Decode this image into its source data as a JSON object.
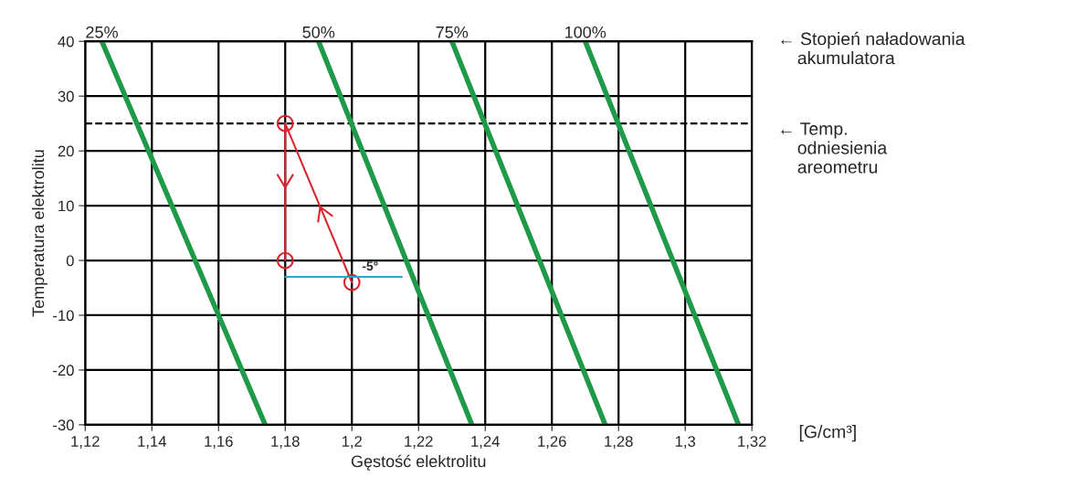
{
  "chart_data": {
    "type": "line",
    "xlabel": "Gęstość elektrolitu",
    "ylabel": "Temperatura elektrolitu",
    "xlim": [
      1.12,
      1.32
    ],
    "ylim": [
      -30,
      40
    ],
    "xticks": [
      {
        "value": 1.12,
        "label": "1,12"
      },
      {
        "value": 1.14,
        "label": "1,14"
      },
      {
        "value": 1.16,
        "label": "1,16"
      },
      {
        "value": 1.18,
        "label": "1,18"
      },
      {
        "value": 1.2,
        "label": "1,2"
      },
      {
        "value": 1.22,
        "label": "1,22"
      },
      {
        "value": 1.24,
        "label": "1,24"
      },
      {
        "value": 1.26,
        "label": "1,26"
      },
      {
        "value": 1.28,
        "label": "1,28"
      },
      {
        "value": 1.3,
        "label": "1,3"
      },
      {
        "value": 1.32,
        "label": "1,32"
      }
    ],
    "yticks": [
      -30,
      -20,
      -10,
      0,
      10,
      20,
      30,
      40
    ],
    "grid": true,
    "legend": false,
    "series": [
      {
        "name": "25%",
        "color": "#1e9a48",
        "x": [
          1.125,
          1.174
        ],
        "values": [
          40,
          -30
        ]
      },
      {
        "name": "50%",
        "color": "#1e9a48",
        "x": [
          1.19,
          1.236
        ],
        "values": [
          40,
          -30
        ]
      },
      {
        "name": "75%",
        "color": "#1e9a48",
        "x": [
          1.23,
          1.276
        ],
        "values": [
          40,
          -30
        ]
      },
      {
        "name": "100%",
        "color": "#1e9a48",
        "x": [
          1.27,
          1.316
        ],
        "values": [
          40,
          -30
        ]
      },
      {
        "color": "#d8262e",
        "x": [
          1.2,
          1.18,
          1.18
        ],
        "values": [
          -4,
          25,
          0
        ],
        "marker": "circle"
      },
      {
        "color": "#2ba3d6",
        "x": [
          1.18,
          1.215
        ],
        "values": [
          -3,
          -3
        ]
      }
    ],
    "ref_lines": [
      {
        "axis": "y",
        "value": 25,
        "color": "#000000",
        "line_style": "dashed"
      }
    ],
    "annotations": [
      "← Stopień naładowania\n    akumulatora",
      "← Temp.\n    odniesienia\n    areometru",
      "[G/cm³]",
      {
        "text": "-5°",
        "x": 1.2,
        "y": -3
      }
    ]
  }
}
